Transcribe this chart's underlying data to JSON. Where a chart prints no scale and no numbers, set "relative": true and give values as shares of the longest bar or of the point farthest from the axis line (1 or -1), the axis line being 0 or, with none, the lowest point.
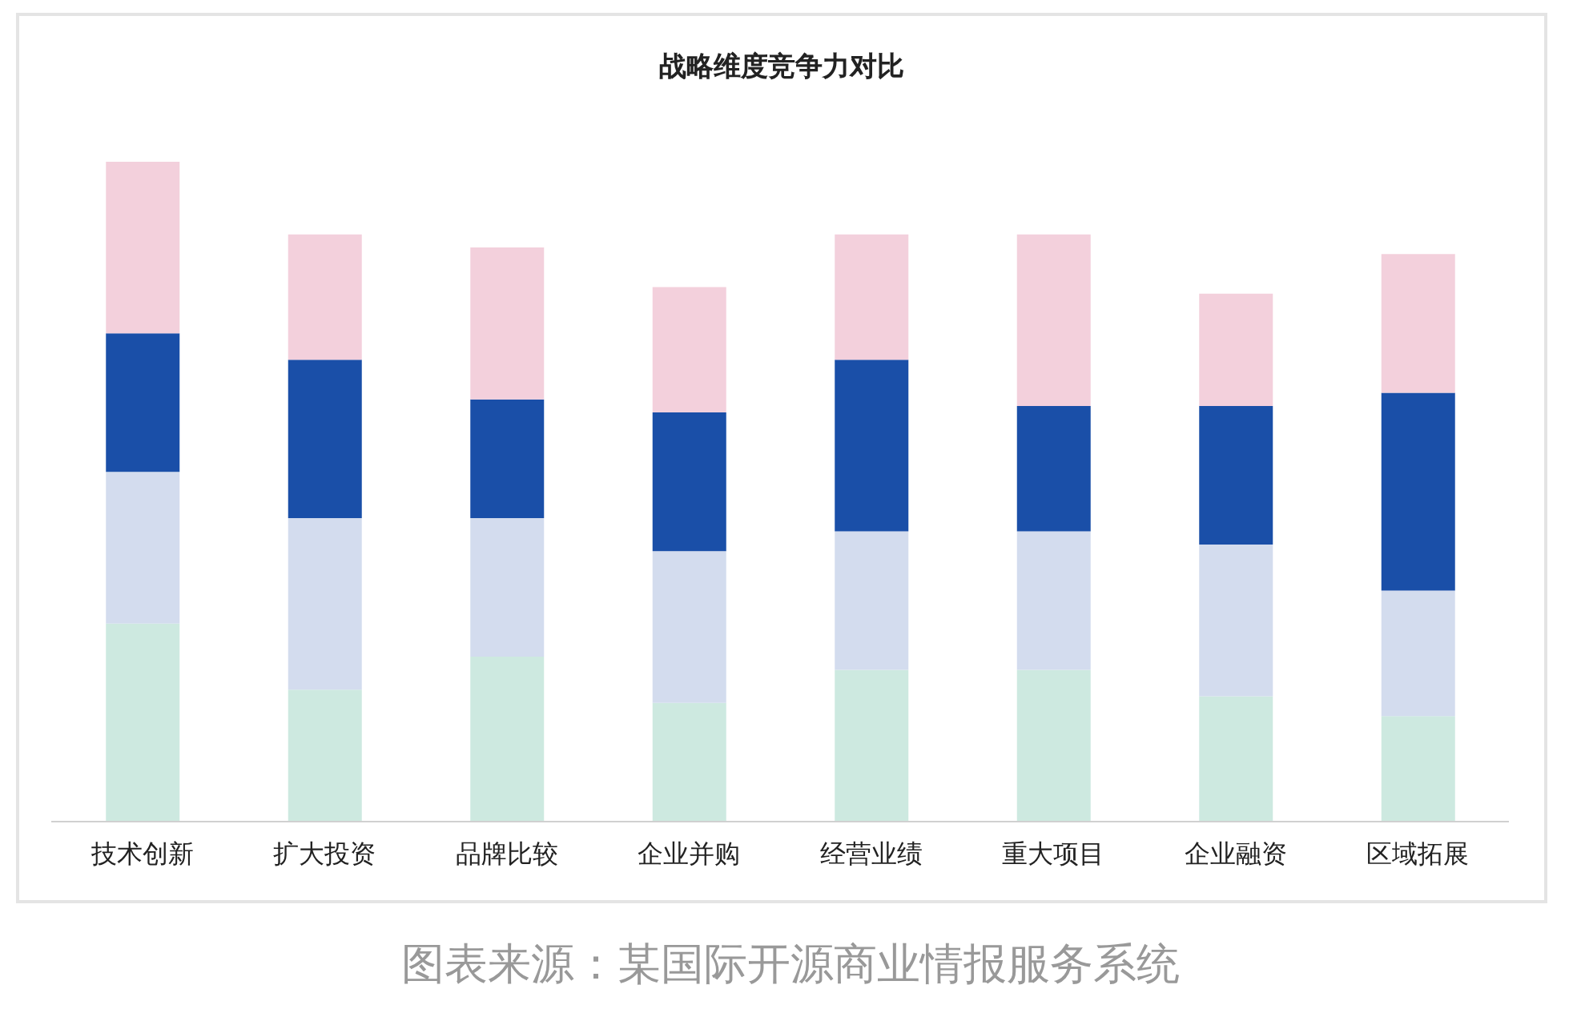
{
  "chart_data": {
    "type": "bar",
    "title": "战略维度竞争力对比",
    "categories": [
      "技术创新",
      "扩大投资",
      "品牌比较",
      "企业并购",
      "经营业绩",
      "重大项目",
      "企业融资",
      "区域拓展"
    ],
    "stacked": true,
    "relative": true,
    "legend": false,
    "grid": false,
    "series": [
      {
        "color": "#cde9e0",
        "values": [
          0.3,
          0.2,
          0.25,
          0.18,
          0.23,
          0.23,
          0.19,
          0.16
        ]
      },
      {
        "color": "#d3dcee",
        "values": [
          0.23,
          0.26,
          0.21,
          0.23,
          0.21,
          0.21,
          0.23,
          0.19
        ]
      },
      {
        "color": "#1a4fa8",
        "values": [
          0.21,
          0.24,
          0.18,
          0.21,
          0.26,
          0.19,
          0.21,
          0.3
        ]
      },
      {
        "color": "#f3d0dc",
        "values": [
          0.26,
          0.19,
          0.23,
          0.19,
          0.19,
          0.26,
          0.17,
          0.21
        ]
      }
    ],
    "annotations": [
      "图表来源：某国际开源商业情报服务系统"
    ]
  }
}
